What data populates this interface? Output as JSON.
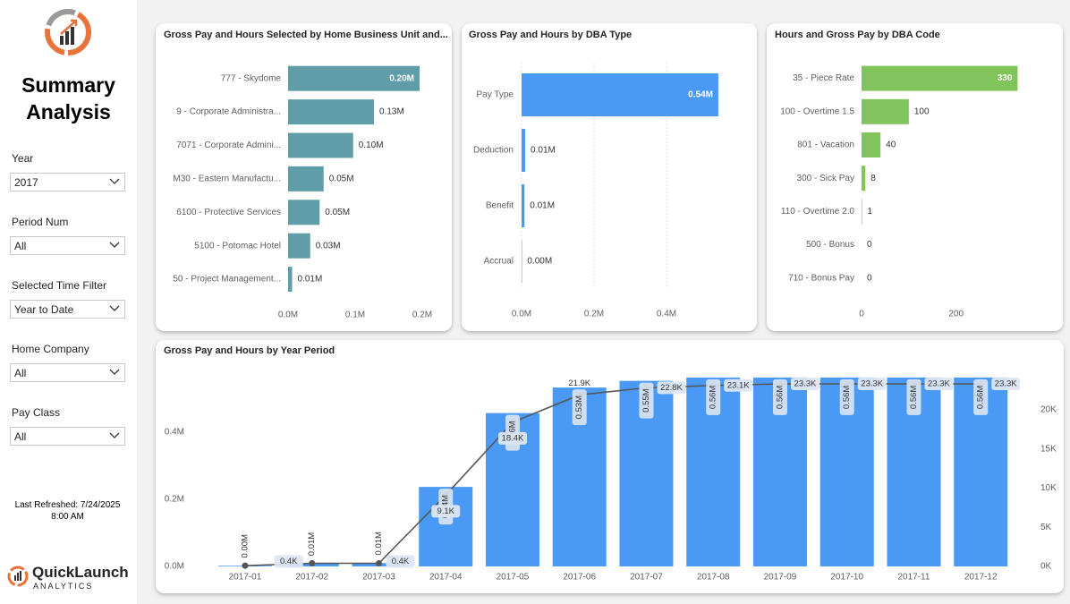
{
  "sidebar": {
    "title": "Summary Analysis",
    "filters": [
      {
        "label": "Year",
        "value": "2017"
      },
      {
        "label": "Period Num",
        "value": "All"
      },
      {
        "label": "Selected Time Filter",
        "value": "Year to Date"
      },
      {
        "label": "Home Company",
        "value": "All"
      },
      {
        "label": "Pay Class",
        "value": "All"
      }
    ],
    "last_refreshed": "Last Refreshed: 7/24/2025 8:00 AM",
    "logo_name": "QuickLaunch",
    "logo_sub": "ANALYTICS"
  },
  "chart_data": [
    {
      "type": "barh",
      "title": "Gross Pay and Hours Selected by Home Business Unit and...",
      "categories": [
        "777 - Skydome",
        "9 - Corporate Administra...",
        "7071 - Corporate Admini...",
        "M30 - Eastern Manufactu...",
        "6100 - Protective Services",
        "5100 - Potomac Hotel",
        "50 - Project Management..."
      ],
      "values": [
        0.196,
        0.128,
        0.097,
        0.053,
        0.047,
        0.033,
        0.006
      ],
      "value_labels": [
        "0.20M",
        "0.13M",
        "0.10M",
        "0.05M",
        "0.05M",
        "0.03M",
        "0.01M"
      ],
      "color": "#5f9ea8",
      "xlim": [
        0,
        0.22
      ],
      "xticks": [
        {
          "value": 0,
          "label": "0.0M"
        },
        {
          "value": 0.1,
          "label": "0.1M"
        },
        {
          "value": 0.2,
          "label": "0.2M"
        }
      ],
      "grid": false
    },
    {
      "type": "barh",
      "title": "Gross Pay and Hours by DBA Type",
      "categories": [
        "Pay Type",
        "Deduction",
        "Benefit",
        "Accrual"
      ],
      "values": [
        0.543,
        0.01,
        0.008,
        0.001
      ],
      "value_labels": [
        "0.54M",
        "0.01M",
        "0.01M",
        "0.00M"
      ],
      "color": "#4a9af5",
      "xlim": [
        0,
        0.6
      ],
      "xticks": [
        {
          "value": 0,
          "label": "0.0M"
        },
        {
          "value": 0.2,
          "label": "0.2M"
        },
        {
          "value": 0.4,
          "label": "0.4M"
        }
      ],
      "grid": true
    },
    {
      "type": "barh",
      "title": "Hours and Gross Pay by DBA Code",
      "categories": [
        "35 - Piece Rate",
        "100 - Overtime 1.5",
        "801 - Vacation",
        "300 - Sick Pay",
        "110 - Overtime 2.0",
        "500 - Bonus",
        "710 - Bonus Pay"
      ],
      "values": [
        330,
        100,
        40,
        8,
        1,
        0,
        0
      ],
      "color": "#82c45c",
      "xlim": [
        0,
        350
      ],
      "xticks": [
        0,
        200
      ],
      "grid": false
    },
    {
      "type": "combo",
      "title": "Gross Pay and Hours by Year Period",
      "categories": [
        "2017-01",
        "2017-02",
        "2017-03",
        "2017-04",
        "2017-05",
        "2017-06",
        "2017-07",
        "2017-08",
        "2017-09",
        "2017-10",
        "2017-11",
        "2017-12"
      ],
      "series": [
        {
          "color": "#4a9af5",
          "values": [
            0.002,
            0.008,
            0.01,
            0.237,
            0.457,
            0.533,
            0.553,
            0.563,
            0.563,
            0.563,
            0.563,
            0.563
          ],
          "value_labels": [
            "0.00M",
            "0.01M",
            "0.01M",
            "0.24M",
            "0.46M",
            "0.53M",
            "0.55M",
            "0.56M",
            "0.56M",
            "0.56M",
            "0.56M",
            "0.56M"
          ]
        },
        {
          "color": "#555555",
          "axis": "y2",
          "values": [
            0.1,
            0.4,
            0.4,
            9.1,
            18.4,
            21.9,
            22.8,
            23.1,
            23.3,
            23.3,
            23.3,
            23.3
          ],
          "value_labels": [
            null,
            "0.4K",
            "0.4K",
            "9.1K",
            "18.4K",
            "21.9K",
            "22.8K",
            "23.1K",
            "23.3K",
            "23.3K",
            "23.3K",
            "23.3K"
          ]
        }
      ],
      "ylim": [
        0,
        0.6
      ],
      "yticks": [
        {
          "value": 0,
          "label": "0.0M"
        },
        {
          "value": 0.2,
          "label": "0.2M"
        },
        {
          "value": 0.4,
          "label": "0.4M"
        }
      ],
      "y2lim": [
        0,
        25.7
      ],
      "y2ticks": [
        {
          "value": 0,
          "label": "0K"
        },
        {
          "value": 5,
          "label": "5K"
        },
        {
          "value": 10,
          "label": "10K"
        },
        {
          "value": 15,
          "label": "15K"
        },
        {
          "value": 20,
          "label": "20K"
        }
      ],
      "grid": false
    }
  ]
}
